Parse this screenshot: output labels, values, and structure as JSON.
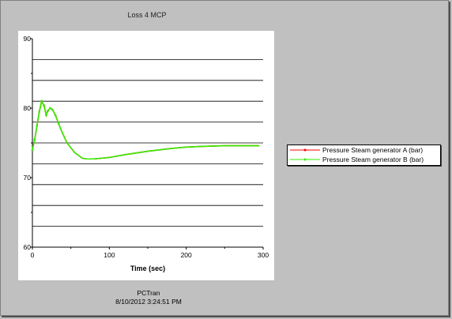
{
  "title": "Loss 4 MCP",
  "footer": {
    "line1": "PCTran",
    "line2": "8/10/2012 3:24:51 PM"
  },
  "colors": {
    "series_a": "#ff0000",
    "series_b": "#33ee00",
    "background": "#c0c0c0",
    "plot_background": "#ffffff"
  },
  "chart_data": {
    "type": "line",
    "title": "Loss 4 MCP",
    "xlabel": "Time (sec)",
    "ylabel": "",
    "xlim": [
      0,
      300
    ],
    "ylim": [
      60,
      90
    ],
    "x_ticks": [
      0,
      100,
      200,
      300
    ],
    "y_ticks": [
      60,
      70,
      80,
      90
    ],
    "y_gridlines": [
      63,
      66,
      69,
      72,
      75,
      78,
      81,
      84,
      87
    ],
    "grid": "horizontal",
    "legend_position": "right",
    "series": [
      {
        "name": "Pressure Steam generator A (bar)",
        "x": [
          0,
          3,
          6,
          9,
          12,
          15,
          18,
          20,
          23,
          26,
          30,
          34,
          38,
          45,
          55,
          65,
          70,
          80,
          100,
          120,
          150,
          180,
          200,
          220,
          250,
          270,
          295
        ],
        "y": [
          74.0,
          75.5,
          77.5,
          79.5,
          81.0,
          80.4,
          79.0,
          79.6,
          80.0,
          79.8,
          79.0,
          77.8,
          76.7,
          75.0,
          73.6,
          72.8,
          72.7,
          72.7,
          72.9,
          73.3,
          73.8,
          74.2,
          74.4,
          74.5,
          74.6,
          74.6,
          74.6
        ]
      },
      {
        "name": "Pressure Steam generator B (bar)",
        "x": [
          0,
          3,
          6,
          9,
          12,
          15,
          18,
          20,
          23,
          26,
          30,
          34,
          38,
          45,
          55,
          65,
          70,
          80,
          100,
          120,
          150,
          180,
          200,
          220,
          250,
          270,
          295
        ],
        "y": [
          74.0,
          75.5,
          77.5,
          79.5,
          81.0,
          80.4,
          79.0,
          79.6,
          80.0,
          79.8,
          79.0,
          77.8,
          76.7,
          75.0,
          73.6,
          72.8,
          72.7,
          72.7,
          72.9,
          73.3,
          73.8,
          74.2,
          74.4,
          74.5,
          74.6,
          74.6,
          74.6
        ]
      }
    ]
  }
}
